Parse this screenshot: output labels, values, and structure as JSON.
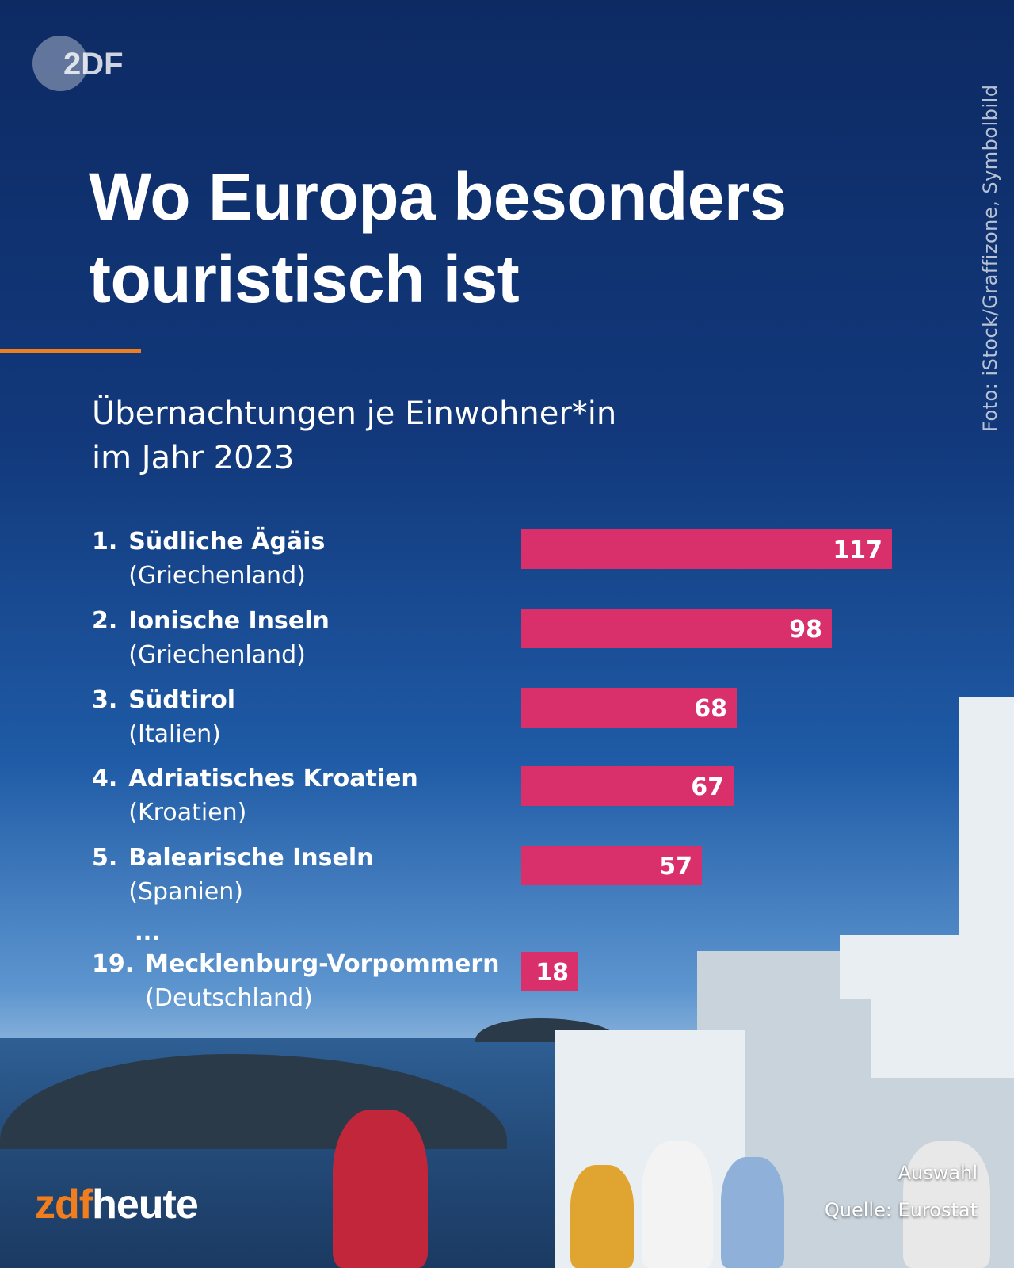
{
  "brand": {
    "logo_text": "2DF",
    "zdf": "zdf",
    "heute": "heute"
  },
  "credit": "Foto: iStock/Graffizone, Symbolbild",
  "title": {
    "line1": "Wo Europa besonders",
    "line2": "touristisch ist"
  },
  "subtitle": {
    "line1": "Übernachtungen je Einwohner*in",
    "line2": "im Jahr 2023"
  },
  "colors": {
    "bar": "#d9306b",
    "accent": "#f07e1e",
    "background_top": "#0d2a63"
  },
  "chart_data": {
    "type": "bar",
    "orientation": "horizontal",
    "title": "Wo Europa besonders touristisch ist",
    "subtitle": "Übernachtungen je Einwohner*in im Jahr 2023",
    "rows": [
      {
        "rank": "1.",
        "region": "Südliche Ägäis",
        "country": "(Griechenland)",
        "value": 117
      },
      {
        "rank": "2.",
        "region": "Ionische Inseln",
        "country": "(Griechenland)",
        "value": 98
      },
      {
        "rank": "3.",
        "region": "Südtirol",
        "country": "(Italien)",
        "value": 68
      },
      {
        "rank": "4.",
        "region": "Adriatisches Kroatien",
        "country": "(Kroatien)",
        "value": 67
      },
      {
        "rank": "5.",
        "region": "Balearische Inseln",
        "country": "(Spanien)",
        "value": 57
      },
      {
        "rank": "19.",
        "region": "Mecklenburg-Vorpommern",
        "country": "(Deutschland)",
        "value": 18
      }
    ],
    "gap_marker": "...",
    "grid": false,
    "legend": "none"
  },
  "footer": {
    "note": "Auswahl",
    "source": "Quelle: Eurostat"
  }
}
